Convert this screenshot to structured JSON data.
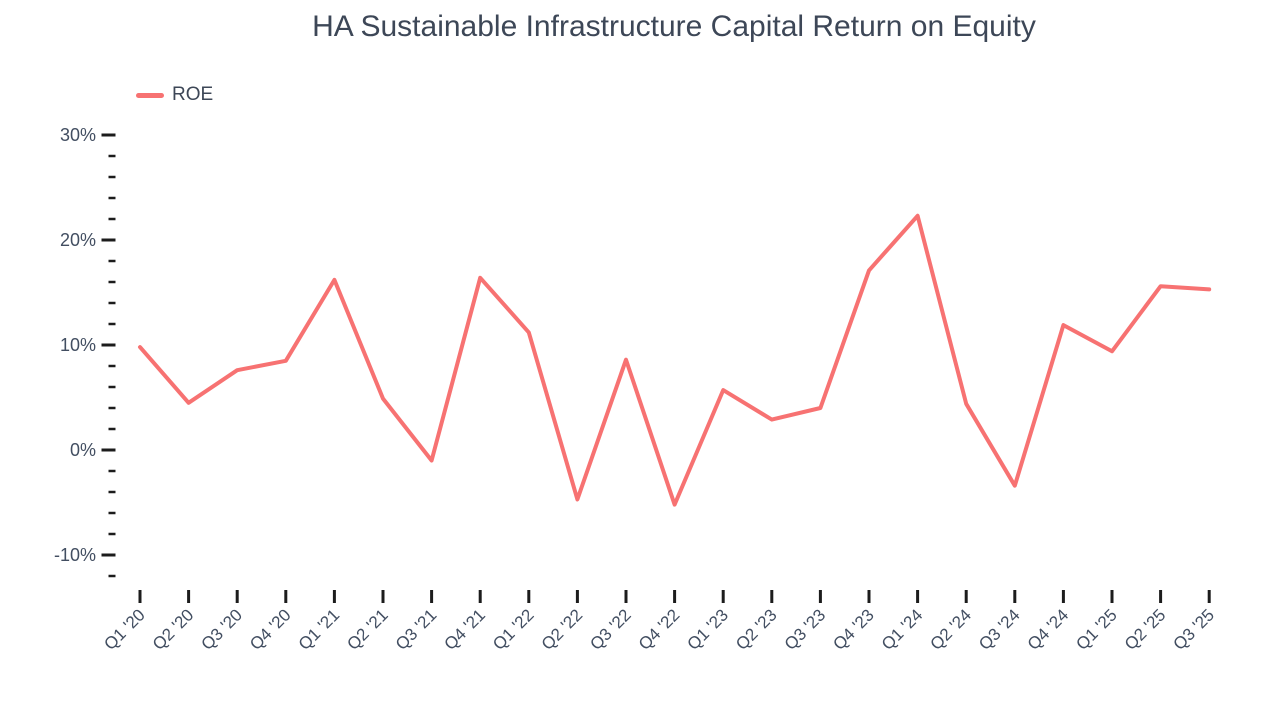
{
  "title": "HA Sustainable Infrastructure Capital Return on Equity",
  "legend": {
    "items": [
      {
        "label": "ROE",
        "color": "#f77272"
      }
    ]
  },
  "colors": {
    "line": "#f77272",
    "tick": "#1c1c1c",
    "axis_text": "#424e61",
    "title_text": "#3d4757"
  },
  "chart_data": {
    "type": "line",
    "title": "HA Sustainable Infrastructure Capital Return on Equity",
    "categories": [
      "Q1 '20",
      "Q2 '20",
      "Q3 '20",
      "Q4 '20",
      "Q1 '21",
      "Q2 '21",
      "Q3 '21",
      "Q4 '21",
      "Q1 '22",
      "Q2 '22",
      "Q3 '22",
      "Q4 '22",
      "Q1 '23",
      "Q2 '23",
      "Q3 '23",
      "Q4 '23",
      "Q1 '24",
      "Q2 '24",
      "Q3 '24",
      "Q4 '24",
      "Q1 '25",
      "Q2 '25",
      "Q3 '25"
    ],
    "series": [
      {
        "name": "ROE",
        "color": "#f77272",
        "values": [
          9.8,
          4.5,
          7.6,
          8.5,
          16.2,
          4.9,
          -1.0,
          16.4,
          11.2,
          -4.7,
          8.6,
          -5.2,
          5.7,
          2.9,
          4.0,
          17.1,
          22.3,
          4.4,
          -3.4,
          11.9,
          9.4,
          15.6,
          15.3
        ]
      }
    ],
    "xlabel": "",
    "ylabel": "",
    "y_axis": {
      "unit": "%",
      "major_ticks": [
        30,
        20,
        10,
        0,
        -10
      ],
      "major_tick_labels": [
        "30%",
        "20%",
        "10%",
        "0%",
        "-10%"
      ],
      "minor_tick_step": 2,
      "min": -12,
      "max": 30
    },
    "grid": false,
    "legend_position": "top-left"
  }
}
